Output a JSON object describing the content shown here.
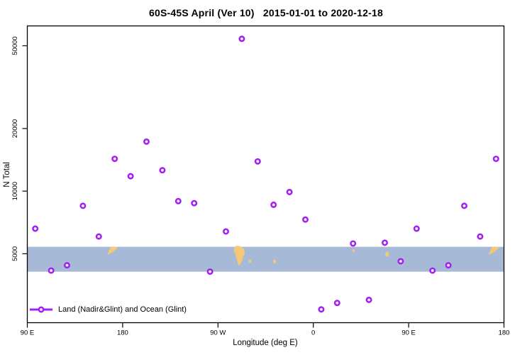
{
  "chart_data": {
    "type": "scatter",
    "title": "60S-45S April (Ver 10)   2015-01-01 to 2020-12-18",
    "xlabel": "Longitude (deg E)",
    "ylabel": "N Total",
    "y_scale": "log",
    "xlim": [
      90,
      540
    ],
    "ylim": [
      2330,
      62300
    ],
    "grid": false,
    "x_ticks": [
      {
        "lon": 90,
        "label": "90 E"
      },
      {
        "lon": 180,
        "label": "180"
      },
      {
        "lon": 270,
        "label": "90 W"
      },
      {
        "lon": 360,
        "label": "0"
      },
      {
        "lon": 450,
        "label": "90 E"
      },
      {
        "lon": 540,
        "label": "180"
      }
    ],
    "y_ticks": [
      {
        "value": 50000,
        "label": "50000"
      },
      {
        "value": 20000,
        "label": "20000"
      },
      {
        "value": 10000,
        "label": "10000"
      },
      {
        "value": 5000,
        "label": "5000"
      }
    ],
    "legend": {
      "label": "Land (Nadir&Glint) and Ocean (Glint)",
      "position": "bottom-left"
    },
    "marker": {
      "shape": "open-circle",
      "color": "#A321F0",
      "fill": "#ffffff",
      "radius": 3.2,
      "stroke_width": 2.6
    },
    "series": [
      {
        "name": "Land (Nadir&Glint) and Ocean (Glint)",
        "points": [
          {
            "lon": 97.5,
            "n": 6600
          },
          {
            "lon": 112.5,
            "n": 4150
          },
          {
            "lon": 127.5,
            "n": 4400
          },
          {
            "lon": 142.5,
            "n": 8500
          },
          {
            "lon": 157.5,
            "n": 6050
          },
          {
            "lon": 172.5,
            "n": 14300
          },
          {
            "lon": 187.5,
            "n": 11800
          },
          {
            "lon": 202.5,
            "n": 17300
          },
          {
            "lon": 217.5,
            "n": 12600
          },
          {
            "lon": 232.5,
            "n": 8950
          },
          {
            "lon": 247.5,
            "n": 8750
          },
          {
            "lon": 262.5,
            "n": 4100
          },
          {
            "lon": 277.5,
            "n": 6400
          },
          {
            "lon": 292.5,
            "n": 54000
          },
          {
            "lon": 307.5,
            "n": 13900
          },
          {
            "lon": 322.5,
            "n": 8600
          },
          {
            "lon": 337.5,
            "n": 9900
          },
          {
            "lon": 352.5,
            "n": 7300
          },
          {
            "lon": 367.5,
            "n": 2700
          },
          {
            "lon": 382.5,
            "n": 2900
          },
          {
            "lon": 397.5,
            "n": 5600
          },
          {
            "lon": 412.5,
            "n": 3000
          },
          {
            "lon": 427.5,
            "n": 5650
          },
          {
            "lon": 442.5,
            "n": 4600
          },
          {
            "lon": 457.5,
            "n": 6600
          },
          {
            "lon": 472.5,
            "n": 4150
          },
          {
            "lon": 487.5,
            "n": 4400
          },
          {
            "lon": 502.5,
            "n": 8500
          },
          {
            "lon": 517.5,
            "n": 6050
          },
          {
            "lon": 532.5,
            "n": 14300
          }
        ]
      }
    ],
    "map_band": {
      "description": "60S-45S latitude world-map strip",
      "value_top": 5400,
      "value_bottom": 4100,
      "ocean_color": "#A6BAD7",
      "land_color": "#F4C877",
      "fragments": [
        {
          "name": "new-zealand",
          "shape": "nz",
          "lon0": 165.5,
          "lon1": 175.5,
          "t": 0.0,
          "b": 0.32
        },
        {
          "name": "patagonia",
          "shape": "patagonia",
          "lon0": 283.0,
          "lon1": 296.5,
          "t": -0.04,
          "b": 0.76
        },
        {
          "name": "falkland-islands",
          "shape": "speck",
          "lon0": 299.0,
          "lon1": 301.5,
          "t": 0.52,
          "b": 0.64
        },
        {
          "name": "south-georgia",
          "shape": "speck",
          "lon0": 322.0,
          "lon1": 325.0,
          "t": 0.52,
          "b": 0.66
        },
        {
          "name": "prince-edward-islands",
          "shape": "speck",
          "lon0": 397.0,
          "lon1": 399.0,
          "t": 0.1,
          "b": 0.22
        },
        {
          "name": "kerguelen",
          "shape": "speck",
          "lon0": 428.0,
          "lon1": 431.5,
          "t": 0.2,
          "b": 0.4
        },
        {
          "name": "new-zealand-wrap",
          "shape": "nz",
          "lon0": 525.5,
          "lon1": 535.5,
          "t": 0.0,
          "b": 0.32
        }
      ]
    }
  }
}
